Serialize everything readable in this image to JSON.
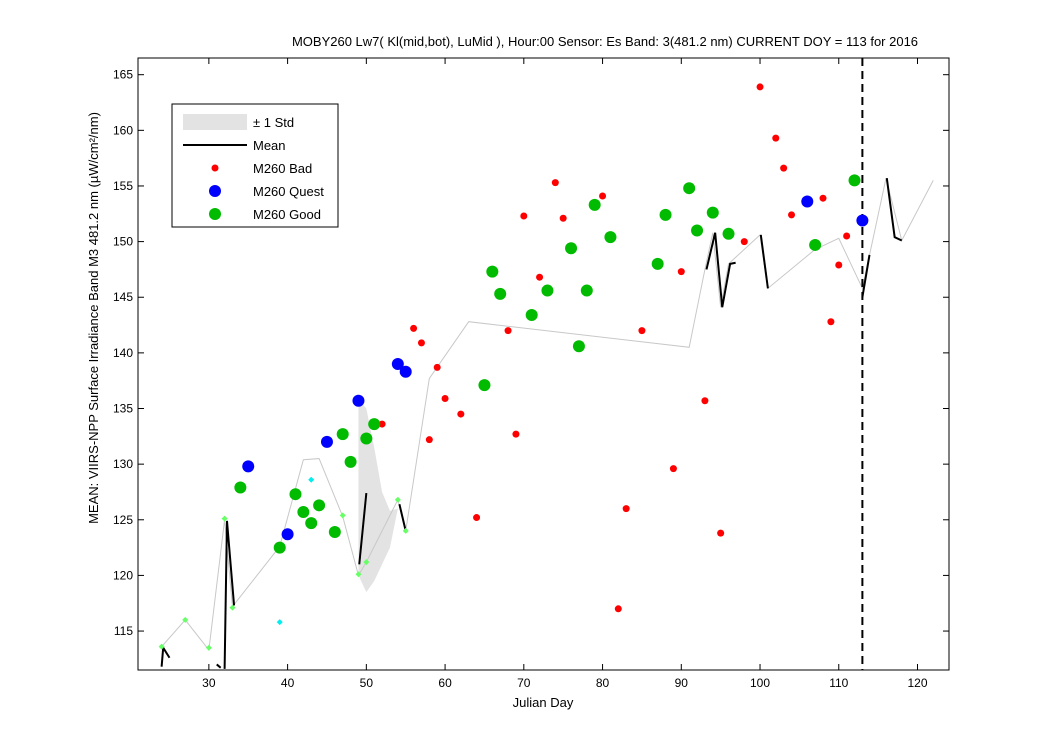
{
  "chart_data": {
    "type": "scatter",
    "title": "MOBY260   Lw7( Kl(mid,bot), LuMid ),   Hour:00 Sensor: Es Band: 3(481.2 nm)   CURRENT DOY = 113 for 2016",
    "xlabel": "Julian Day",
    "ylabel": "MEAN: VIIRS-NPP Surface Irradiance Band M3 481.2 nm (µW/cm²/nm)",
    "xlim": [
      21,
      124
    ],
    "ylim": [
      111.5,
      166.5
    ],
    "xticks": [
      30,
      40,
      50,
      60,
      70,
      80,
      90,
      100,
      110,
      120
    ],
    "yticks": [
      115,
      120,
      125,
      130,
      135,
      140,
      145,
      150,
      155,
      160,
      165
    ],
    "current_doy": 113,
    "grid": false,
    "legend_position": "top-left",
    "legend": [
      {
        "label": "± 1 Std",
        "kind": "patch",
        "color": "#e3e3e3"
      },
      {
        "label": "Mean",
        "kind": "line",
        "color": "#000000"
      },
      {
        "label": "M260 Bad",
        "kind": "marker",
        "color": "#ff0000"
      },
      {
        "label": "M260 Quest",
        "kind": "marker",
        "color": "#0000ff"
      },
      {
        "label": "M260 Good",
        "kind": "marker",
        "color": "#00bb00"
      }
    ],
    "std_band": {
      "upper": [
        [
          49,
          135.8
        ],
        [
          50,
          135.0
        ],
        [
          51,
          131.5
        ],
        [
          52,
          127.5
        ],
        [
          53,
          125.8
        ],
        [
          54,
          126.0
        ]
      ],
      "lower": [
        [
          54,
          126.0
        ],
        [
          53,
          122.5
        ],
        [
          52,
          121.0
        ],
        [
          51,
          119.5
        ],
        [
          50,
          118.5
        ],
        [
          49,
          120.0
        ]
      ]
    },
    "mean_gray": [
      [
        24,
        113.6
      ],
      [
        27,
        116.0
      ],
      [
        30,
        113.3
      ],
      [
        32,
        125.0
      ],
      [
        33,
        117.2
      ],
      [
        39,
        122.6
      ],
      [
        42,
        130.4
      ],
      [
        44,
        130.5
      ],
      [
        47,
        125.3
      ],
      [
        49,
        120.0
      ],
      [
        50,
        121.2
      ],
      [
        54,
        126.8
      ],
      [
        55,
        124.0
      ],
      [
        58,
        137.7
      ],
      [
        63,
        142.8
      ],
      [
        91,
        140.5
      ],
      [
        93,
        147.5
      ],
      [
        94,
        150.8
      ],
      [
        95,
        144.1
      ],
      [
        96,
        148.0
      ],
      [
        100,
        150.6
      ],
      [
        101,
        145.8
      ],
      [
        107,
        149.3
      ],
      [
        110,
        150.3
      ],
      [
        113,
        145.8
      ],
      [
        116,
        155.7
      ],
      [
        118,
        150.1
      ],
      [
        122,
        155.5
      ]
    ],
    "mean_black": [
      [
        [
          24,
          111.8
        ],
        [
          24.2,
          113.5
        ],
        [
          25,
          112.6
        ]
      ],
      [
        [
          31,
          112.0
        ],
        [
          31.5,
          111.7
        ]
      ],
      [
        [
          32,
          111.6
        ],
        [
          32.3,
          124.9
        ],
        [
          33.2,
          117.3
        ]
      ],
      [
        [
          49.1,
          121.0
        ],
        [
          50.0,
          127.4
        ]
      ],
      [
        [
          54.2,
          126.4
        ],
        [
          55.0,
          124.0
        ]
      ],
      [
        [
          93.2,
          147.5
        ],
        [
          94.3,
          150.8
        ],
        [
          95.2,
          144.1
        ],
        [
          96.2,
          148.0
        ],
        [
          96.9,
          148.1
        ]
      ],
      [
        [
          100.1,
          150.6
        ],
        [
          101,
          145.8
        ]
      ],
      [
        [
          113,
          145.0
        ],
        [
          113.9,
          148.8
        ]
      ],
      [
        [
          116.1,
          155.7
        ],
        [
          117.1,
          150.4
        ],
        [
          118,
          150.1
        ]
      ]
    ],
    "small_green": [
      [
        24,
        113.6
      ],
      [
        27,
        116.0
      ],
      [
        30,
        113.5
      ],
      [
        32,
        125.1
      ],
      [
        33,
        117.1
      ],
      [
        47,
        125.4
      ],
      [
        49,
        120.1
      ],
      [
        50,
        121.2
      ],
      [
        54,
        126.8
      ],
      [
        55,
        124.0
      ]
    ],
    "small_cyan": [
      [
        39,
        115.8
      ],
      [
        43,
        128.6
      ]
    ],
    "series": [
      {
        "name": "M260 Bad",
        "color": "#ff0000",
        "points": [
          [
            52,
            133.6
          ],
          [
            56,
            142.2
          ],
          [
            57,
            140.9
          ],
          [
            58,
            132.2
          ],
          [
            59,
            138.7
          ],
          [
            60,
            135.9
          ],
          [
            62,
            134.5
          ],
          [
            64,
            125.2
          ],
          [
            68,
            142.0
          ],
          [
            69,
            132.7
          ],
          [
            70,
            152.3
          ],
          [
            72,
            146.8
          ],
          [
            74,
            155.3
          ],
          [
            75,
            152.1
          ],
          [
            80,
            154.1
          ],
          [
            82,
            117.0
          ],
          [
            83,
            126.0
          ],
          [
            85,
            142.0
          ],
          [
            89,
            129.6
          ],
          [
            90,
            147.3
          ],
          [
            93,
            135.7
          ],
          [
            95,
            123.8
          ],
          [
            98,
            150.0
          ],
          [
            100,
            163.9
          ],
          [
            102,
            159.3
          ],
          [
            103,
            156.6
          ],
          [
            104,
            152.4
          ],
          [
            108,
            153.9
          ],
          [
            109,
            142.8
          ],
          [
            110,
            147.9
          ],
          [
            111,
            150.5
          ]
        ]
      },
      {
        "name": "M260 Quest",
        "color": "#0000ff",
        "points": [
          [
            35,
            129.8
          ],
          [
            40,
            123.7
          ],
          [
            45,
            132.0
          ],
          [
            49,
            135.7
          ],
          [
            54,
            139.0
          ],
          [
            55,
            138.3
          ],
          [
            106,
            153.6
          ],
          [
            113,
            151.9
          ]
        ]
      },
      {
        "name": "M260 Good",
        "color": "#00bb00",
        "points": [
          [
            34,
            127.9
          ],
          [
            39,
            122.5
          ],
          [
            41,
            127.3
          ],
          [
            42,
            125.7
          ],
          [
            43,
            124.7
          ],
          [
            44,
            126.3
          ],
          [
            46,
            123.9
          ],
          [
            47,
            132.7
          ],
          [
            48,
            130.2
          ],
          [
            50,
            132.3
          ],
          [
            51,
            133.6
          ],
          [
            65,
            137.1
          ],
          [
            66,
            147.3
          ],
          [
            67,
            145.3
          ],
          [
            71,
            143.4
          ],
          [
            73,
            145.6
          ],
          [
            76,
            149.4
          ],
          [
            77,
            140.6
          ],
          [
            78,
            145.6
          ],
          [
            79,
            153.3
          ],
          [
            81,
            150.4
          ],
          [
            87,
            148.0
          ],
          [
            88,
            152.4
          ],
          [
            91,
            154.8
          ],
          [
            92,
            151.0
          ],
          [
            94,
            152.6
          ],
          [
            96,
            150.7
          ],
          [
            107,
            149.7
          ],
          [
            112,
            155.5
          ]
        ]
      }
    ]
  }
}
